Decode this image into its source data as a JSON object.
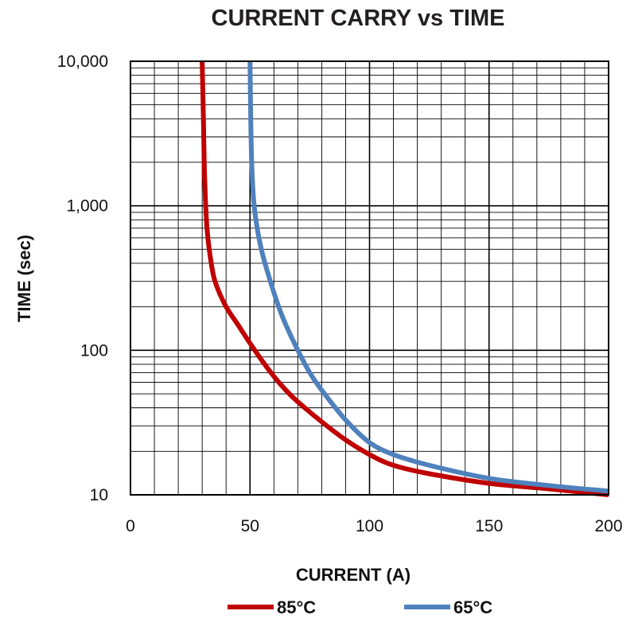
{
  "chart_data": {
    "type": "line",
    "title": "CURRENT CARRY vs TIME",
    "xlabel": "CURRENT (A)",
    "ylabel": "TIME (sec)",
    "xlim": [
      0,
      200
    ],
    "ylim": [
      10,
      10000
    ],
    "yscale": "log",
    "grid": true,
    "legend_position": "bottom",
    "x_tick_labels": [
      "0",
      "50",
      "100",
      "150",
      "200"
    ],
    "x_ticks": [
      0,
      50,
      100,
      150,
      200
    ],
    "y_tick_labels": [
      "10",
      "100",
      "1,000",
      "10,000"
    ],
    "y_ticks": [
      10,
      100,
      1000,
      10000
    ],
    "series": [
      {
        "name": "85°C",
        "color": "#c00000",
        "x": [
          30,
          30.5,
          31,
          32,
          34,
          36,
          40,
          45,
          50,
          55,
          60,
          65,
          70,
          80,
          90,
          100,
          110,
          125,
          150,
          175,
          200
        ],
        "y": [
          10000,
          4000,
          1600,
          700,
          380,
          280,
          200,
          150,
          112,
          85,
          66,
          53,
          44,
          32,
          24,
          19,
          16,
          14,
          12,
          11,
          10
        ]
      },
      {
        "name": "65°C",
        "color": "#4f81bd",
        "x": [
          50,
          50.3,
          50.7,
          51.5,
          53,
          55,
          58,
          62,
          65,
          70,
          75,
          80,
          90,
          100,
          110,
          125,
          150,
          175,
          200
        ],
        "y": [
          10000,
          4000,
          2000,
          1100,
          700,
          480,
          320,
          200,
          150,
          100,
          70,
          53,
          33,
          23,
          19,
          16,
          13,
          11.6,
          10.6
        ]
      }
    ]
  }
}
